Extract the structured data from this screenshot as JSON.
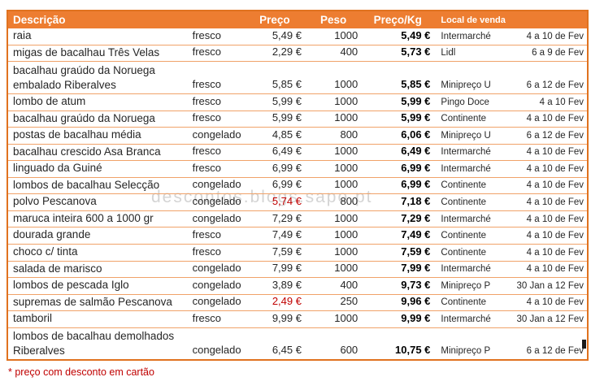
{
  "colors": {
    "header_bg": "#ed7d31",
    "border_outer": "#e0721f",
    "row_line": "#f0a269",
    "text": "#262626",
    "red": "#c00000"
  },
  "watermark": "descontos.blogs.sapo.pt",
  "footnote": "* preço com desconto em cartão",
  "chart_data": {
    "type": "table",
    "columns": [
      {
        "key": "descricao",
        "label": "Descrição"
      },
      {
        "key": "estado",
        "label": ""
      },
      {
        "key": "preco",
        "label": "Preço"
      },
      {
        "key": "peso",
        "label": "Peso"
      },
      {
        "key": "preco_kg",
        "label": "Preço/Kg"
      },
      {
        "key": "local",
        "label": "Local de venda"
      },
      {
        "key": "datas",
        "label": ""
      }
    ],
    "rows": [
      {
        "descricao": "raia",
        "estado": "fresco",
        "preco": "5,49 €",
        "preco_red": false,
        "peso": "1000",
        "preco_kg": "5,49 €",
        "local": "Intermarché",
        "datas": "4 a 10 de Fev"
      },
      {
        "descricao": "migas de bacalhau Três Velas",
        "estado": "fresco",
        "preco": "2,29 €",
        "preco_red": false,
        "peso": "400",
        "preco_kg": "5,73 €",
        "local": "Lidl",
        "datas": "6 a 9 de Fev"
      },
      {
        "descricao": "bacalhau graúdo da Noruega\nembalado Riberalves",
        "estado": "fresco",
        "preco": "5,85 €",
        "preco_red": false,
        "peso": "1000",
        "preco_kg": "5,85 €",
        "local": "Minipreço U",
        "datas": "6 a 12 de Fev"
      },
      {
        "descricao": "lombo de atum",
        "estado": "fresco",
        "preco": "5,99 €",
        "preco_red": false,
        "peso": "1000",
        "preco_kg": "5,99 €",
        "local": "Pingo Doce",
        "datas": "4 a 10 Fev"
      },
      {
        "descricao": "bacalhau graúdo da Noruega",
        "estado": "fresco",
        "preco": "5,99 €",
        "preco_red": false,
        "peso": "1000",
        "preco_kg": "5,99 €",
        "local": "Continente",
        "datas": "4 a 10 de Fev"
      },
      {
        "descricao": "postas de bacalhau média",
        "estado": "congelado",
        "preco": "4,85 €",
        "preco_red": false,
        "peso": "800",
        "preco_kg": "6,06 €",
        "local": "Minipreço U",
        "datas": "6 a 12 de Fev"
      },
      {
        "descricao": "bacalhau crescido Asa Branca",
        "estado": "fresco",
        "preco": "6,49 €",
        "preco_red": false,
        "peso": "1000",
        "preco_kg": "6,49 €",
        "local": "Intermarché",
        "datas": "4 a 10 de Fev"
      },
      {
        "descricao": "linguado da Guiné",
        "estado": "fresco",
        "preco": "6,99 €",
        "preco_red": false,
        "peso": "1000",
        "preco_kg": "6,99 €",
        "local": "Intermarché",
        "datas": "4 a 10 de Fev"
      },
      {
        "descricao": "lombos de bacalhau Selecção",
        "estado": "congelado",
        "preco": "6,99 €",
        "preco_red": false,
        "peso": "1000",
        "preco_kg": "6,99 €",
        "local": "Continente",
        "datas": "4 a 10 de Fev"
      },
      {
        "descricao": "polvo Pescanova",
        "estado": "congelado",
        "preco": "5,74 €",
        "preco_red": true,
        "peso": "800",
        "preco_kg": "7,18 €",
        "local": "Continente",
        "datas": "4 a 10 de Fev"
      },
      {
        "descricao": "maruca inteira 600 a 1000 gr",
        "estado": "congelado",
        "preco": "7,29 €",
        "preco_red": false,
        "peso": "1000",
        "preco_kg": "7,29 €",
        "local": "Intermarché",
        "datas": "4 a 10 de Fev"
      },
      {
        "descricao": "dourada grande",
        "estado": "fresco",
        "preco": "7,49 €",
        "preco_red": false,
        "peso": "1000",
        "preco_kg": "7,49 €",
        "local": "Continente",
        "datas": "4 a 10 de Fev"
      },
      {
        "descricao": "choco c/ tinta",
        "estado": "fresco",
        "preco": "7,59 €",
        "preco_red": false,
        "peso": "1000",
        "preco_kg": "7,59 €",
        "local": "Continente",
        "datas": "4 a 10 de Fev"
      },
      {
        "descricao": "salada de marisco",
        "estado": "congelado",
        "preco": "7,99 €",
        "preco_red": false,
        "peso": "1000",
        "preco_kg": "7,99 €",
        "local": "Intermarché",
        "datas": "4 a 10 de Fev"
      },
      {
        "descricao": "lombos de pescada Iglo",
        "estado": "congelado",
        "preco": "3,89 €",
        "preco_red": false,
        "peso": "400",
        "preco_kg": "9,73 €",
        "local": "Minipreço P",
        "datas": "30 Jan a 12 Fev"
      },
      {
        "descricao": "supremas de salmão Pescanova",
        "estado": "congelado",
        "preco": "2,49 €",
        "preco_red": true,
        "peso": "250",
        "preco_kg": "9,96 €",
        "local": "Continente",
        "datas": "4 a 10 de Fev"
      },
      {
        "descricao": "tamboril",
        "estado": "fresco",
        "preco": "9,99 €",
        "preco_red": false,
        "peso": "1000",
        "preco_kg": "9,99 €",
        "local": "Intermarché",
        "datas": "30 Jan a 12 Fev"
      },
      {
        "descricao": "lombos de bacalhau demolhados\nRiberalves",
        "estado": "congelado",
        "preco": "6,45 €",
        "preco_red": false,
        "peso": "600",
        "preco_kg": "10,75 €",
        "local": "Minipreço P",
        "datas": "6 a 12 de Fev"
      }
    ]
  }
}
